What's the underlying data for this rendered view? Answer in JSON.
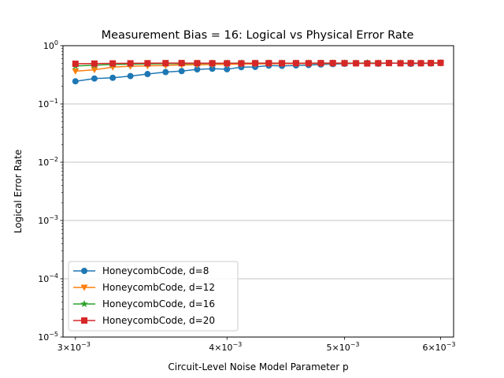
{
  "chart_data": {
    "type": "line",
    "title": "Measurement Bias = 16: Logical vs Physical Error Rate",
    "xlabel": "Circuit-Level Noise Model Parameter p",
    "ylabel": "Logical Error Rate",
    "xscale": "log",
    "yscale": "log",
    "xlim": [
      0.00293,
      0.00615
    ],
    "ylim": [
      1e-05,
      1
    ],
    "grid": "y-major",
    "legend_position": "lower-left",
    "x_ticks": [
      {
        "value": 0.003,
        "base": "3",
        "exp": "−3"
      },
      {
        "value": 0.004,
        "base": "4",
        "exp": "−3"
      },
      {
        "value": 0.005,
        "base": "5",
        "exp": "−3"
      },
      {
        "value": 0.006,
        "base": "6",
        "exp": "−3"
      }
    ],
    "y_ticks": [
      {
        "value": 1e-05,
        "exp": "−5"
      },
      {
        "value": 0.0001,
        "exp": "−4"
      },
      {
        "value": 0.001,
        "exp": "−3"
      },
      {
        "value": 0.01,
        "exp": "−2"
      },
      {
        "value": 0.1,
        "exp": "−1"
      },
      {
        "value": 1,
        "exp": "0"
      }
    ],
    "x": [
      0.003,
      0.00311,
      0.00322,
      0.00333,
      0.00344,
      0.00356,
      0.00367,
      0.00378,
      0.00389,
      0.004,
      0.00411,
      0.00422,
      0.00433,
      0.00444,
      0.00456,
      0.00467,
      0.00478,
      0.00489,
      0.005,
      0.00511,
      0.00522,
      0.00533,
      0.00544,
      0.00556,
      0.00567,
      0.00578,
      0.00589,
      0.006
    ],
    "series": [
      {
        "name": "HoneycombCode, d=8",
        "color": "#1f77b4",
        "marker": "circle",
        "values": [
          0.245,
          0.273,
          0.281,
          0.301,
          0.326,
          0.352,
          0.366,
          0.392,
          0.402,
          0.394,
          0.428,
          0.432,
          0.455,
          0.45,
          0.458,
          0.465,
          0.475,
          0.483,
          0.489,
          0.498,
          0.502,
          0.49,
          0.505,
          0.5,
          0.488,
          0.498,
          0.495,
          0.505
        ]
      },
      {
        "name": "HoneycombCode, d=12",
        "color": "#ff7f0e",
        "marker": "triangle-down",
        "values": [
          0.365,
          0.385,
          0.428,
          0.444,
          0.451,
          0.458,
          0.468,
          0.471,
          0.476,
          0.478,
          0.484,
          0.486,
          0.488,
          0.491,
          0.492,
          0.494,
          0.495,
          0.497,
          0.498,
          0.498,
          0.5,
          0.499,
          0.501,
          0.5,
          0.502,
          0.499,
          0.5,
          0.501
        ]
      },
      {
        "name": "HoneycombCode, d=16",
        "color": "#2ca02c",
        "marker": "star",
        "values": [
          0.448,
          0.462,
          0.475,
          0.481,
          0.486,
          0.49,
          0.493,
          0.495,
          0.497,
          0.498,
          0.502,
          0.499,
          0.5,
          0.501,
          0.5,
          0.502,
          0.499,
          0.501,
          0.503,
          0.5,
          0.505,
          0.502,
          0.5,
          0.501,
          0.503,
          0.5,
          0.502,
          0.504
        ]
      },
      {
        "name": "HoneycombCode, d=20",
        "color": "#d62728",
        "marker": "square",
        "values": [
          0.49,
          0.493,
          0.496,
          0.498,
          0.5,
          0.502,
          0.503,
          0.501,
          0.5,
          0.499,
          0.498,
          0.501,
          0.502,
          0.5,
          0.501,
          0.5,
          0.502,
          0.503,
          0.501,
          0.499,
          0.495,
          0.5,
          0.503,
          0.499,
          0.502,
          0.5,
          0.503,
          0.508
        ]
      }
    ]
  }
}
